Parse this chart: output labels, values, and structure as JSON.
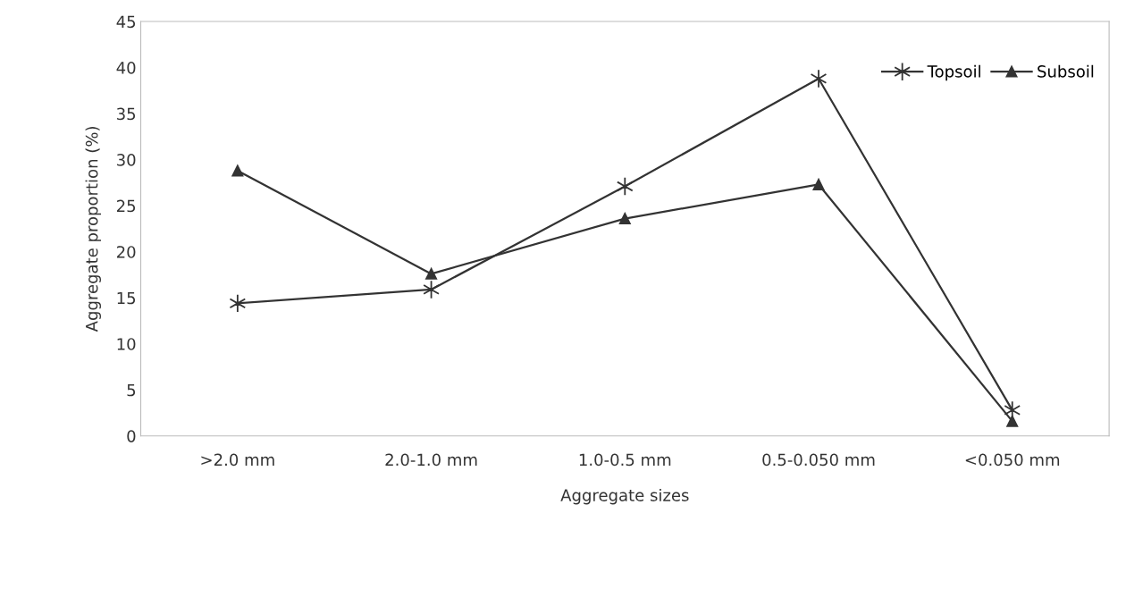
{
  "chart_data": {
    "type": "line",
    "xlabel": "Aggregate sizes",
    "ylabel": "Aggregate proportion (%)",
    "categories": [
      ">2.0 mm",
      "2.0-1.0 mm",
      "1.0-0.5 mm",
      "0.5-0.050 mm",
      "<0.050 mm"
    ],
    "series": [
      {
        "name": "Topsoil",
        "color": "#333333",
        "marker": "cross",
        "values": [
          14.4,
          15.9,
          27.1,
          38.8,
          2.8
        ]
      },
      {
        "name": "Subsoil",
        "color": "#333333",
        "marker": "triangle",
        "values": [
          28.8,
          17.6,
          23.6,
          27.3,
          1.6
        ]
      }
    ],
    "ylim": [
      0,
      45
    ],
    "yticks": [
      0,
      5,
      10,
      15,
      20,
      25,
      30,
      35,
      40,
      45
    ],
    "grid": false,
    "legend": "top right",
    "line_style": "solid"
  }
}
